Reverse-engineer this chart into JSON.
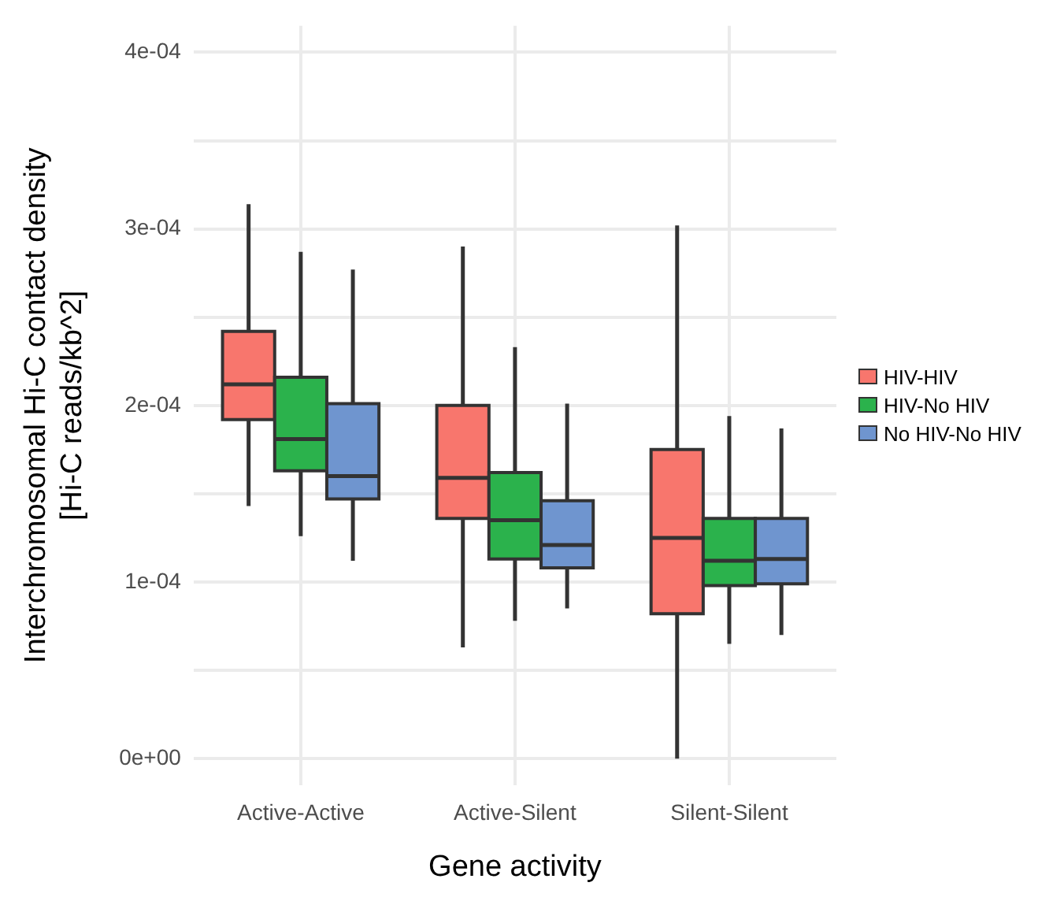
{
  "chart_data": {
    "type": "box",
    "xlabel": "Gene activity",
    "ylabel": "Interchromosomal Hi-C contact density\n[Hi-C reads/kb^2]",
    "categories": [
      "Active-Active",
      "Active-Silent",
      "Silent-Silent"
    ],
    "series": [
      {
        "name": "HIV-HIV",
        "color": "#f8766d",
        "boxes": [
          {
            "low": 0.000143,
            "q1": 0.000192,
            "median": 0.000212,
            "q3": 0.000242,
            "high": 0.000314
          },
          {
            "low": 6.3e-05,
            "q1": 0.000136,
            "median": 0.000159,
            "q3": 0.0002,
            "high": 0.00029
          },
          {
            "low": 0.0,
            "q1": 8.2e-05,
            "median": 0.000125,
            "q3": 0.000175,
            "high": 0.000302
          }
        ]
      },
      {
        "name": "HIV-No HIV",
        "color": "#2bb24c",
        "boxes": [
          {
            "low": 0.000126,
            "q1": 0.000163,
            "median": 0.000181,
            "q3": 0.000216,
            "high": 0.000287
          },
          {
            "low": 7.8e-05,
            "q1": 0.000113,
            "median": 0.000135,
            "q3": 0.000162,
            "high": 0.000233
          },
          {
            "low": 6.5e-05,
            "q1": 9.8e-05,
            "median": 0.000112,
            "q3": 0.000136,
            "high": 0.000194
          }
        ]
      },
      {
        "name": "No HIV-No HIV",
        "color": "#6f95cf",
        "boxes": [
          {
            "low": 0.000112,
            "q1": 0.000147,
            "median": 0.00016,
            "q3": 0.000201,
            "high": 0.000277
          },
          {
            "low": 8.5e-05,
            "q1": 0.000108,
            "median": 0.000121,
            "q3": 0.000146,
            "high": 0.000201
          },
          {
            "low": 7e-05,
            "q1": 9.9e-05,
            "median": 0.000113,
            "q3": 0.000136,
            "high": 0.000187
          }
        ]
      }
    ],
    "ylim": [
      -1.5e-05,
      0.000415
    ],
    "yticks": [
      {
        "value": 0,
        "label": "0e+00"
      },
      {
        "value": 5e-05,
        "label": null
      },
      {
        "value": 0.0001,
        "label": "1e-04"
      },
      {
        "value": 0.00015,
        "label": null
      },
      {
        "value": 0.0002,
        "label": "2e-04"
      },
      {
        "value": 0.00025,
        "label": null
      },
      {
        "value": 0.0003,
        "label": "3e-04"
      },
      {
        "value": 0.00035,
        "label": null
      },
      {
        "value": 0.0004,
        "label": "4e-04"
      }
    ],
    "grid": true,
    "legend": "right"
  }
}
